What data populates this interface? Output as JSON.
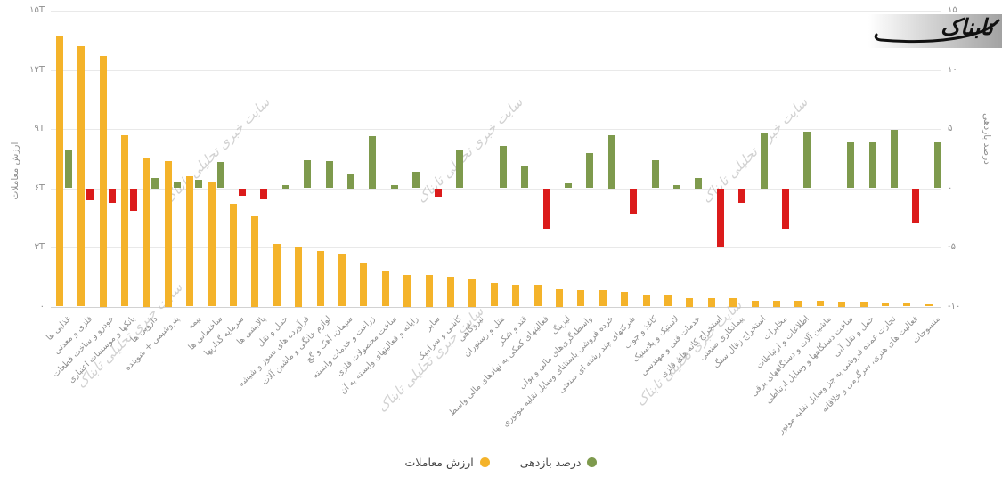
{
  "logo": {
    "text": "تابناک"
  },
  "watermark": {
    "text": "سایت خبری تحلیلی تابناک"
  },
  "legend": {
    "items": [
      {
        "label": "ارزش معاملات",
        "color": "#F4B32A"
      },
      {
        "label": "درصد بازدهی",
        "color": "#7E9A4D"
      }
    ]
  },
  "colors": {
    "value_bar": "#F4B32A",
    "return_positive": "#7E9A4D",
    "return_negative": "#DB1B1B"
  },
  "chart_data": {
    "type": "bar",
    "title": "",
    "legend_position": "bottom",
    "grid": true,
    "left_axis": {
      "title": "ارزش معاملات",
      "range": [
        0,
        15
      ],
      "ticks_top_to_bottom": [
        "۱۵T",
        "۱۲T",
        "۹T",
        "۶T",
        "۳T",
        "۰"
      ]
    },
    "right_axis": {
      "title": "درصد بازدهی",
      "range": [
        -10,
        15
      ],
      "ticks_top_to_bottom": [
        "۱۵",
        "۱۰",
        "۵",
        "۰",
        "-۵",
        "-۱۰"
      ]
    },
    "categories": [
      "غذایی ها",
      "فلزی و معدنی",
      "خودرو و ساخت قطعات",
      "بانکها و موسسات اعتباری",
      "دارویی ها",
      "پتروشیمی + شوینده",
      "بیمه",
      "ساختمانی ها",
      "سرمایه گذاریها",
      "پالایشی ها",
      "حمل و نقل",
      "فرآورده های نسوز و شیشه",
      "لوازم خانگی و ماشین آلات",
      "سیمان، آهک و گچ",
      "زراعت و خدمات وابسته",
      "ساخت محصولات فلزی",
      "رایانه و فعالیتهای وابسته به آن",
      "سایر",
      "کاشی و سرامیک",
      "نیروگاهی",
      "هتل و رستوران",
      "قند و شکر",
      "فعالیتهای کمکی به نهادهای مالی واسط",
      "لیزینگ",
      "واسطه‌گری‌های مالی و پولی",
      "خرده فروشی باستثنای وسایل نقلیه موتوری",
      "شرکتهای چند رشته ای صنعتی",
      "کاغذ و چوب",
      "لاستیک و پلاستیک",
      "خدمات فنی و مهندسی",
      "استخراج کانه های فلزی",
      "پیمانکاری صنعتی",
      "استخراج زغال سنگ",
      "مخابرات",
      "اطلاعات و ارتباطات",
      "ماشین آلات و دستگاههای برقی",
      "ساخت دستگاهها و وسایل ارتباطی",
      "حمل و نقل آبی",
      "تجارت عمده فروشی به جز وسایل نقلیه موتور",
      "فعالیت های هنری، سرگرمی و خلاقانه",
      "منسوجات"
    ],
    "series": [
      {
        "name": "ارزش معاملات",
        "axis": "left",
        "values": [
          13.7,
          13.2,
          12.7,
          8.7,
          7.5,
          7.4,
          6.6,
          6.3,
          5.2,
          4.6,
          3.2,
          3.0,
          2.8,
          2.7,
          2.2,
          1.8,
          1.6,
          1.6,
          1.5,
          1.4,
          1.2,
          1.1,
          1.1,
          0.9,
          0.85,
          0.85,
          0.75,
          0.6,
          0.6,
          0.45,
          0.45,
          0.45,
          0.3,
          0.3,
          0.3,
          0.28,
          0.25,
          0.25,
          0.22,
          0.15,
          0.1
        ]
      },
      {
        "name": "درصد بازدهی",
        "axis": "right",
        "values": [
          3.3,
          -1.0,
          -1.2,
          -1.9,
          0.9,
          0.5,
          0.7,
          2.2,
          -0.6,
          -0.9,
          0.3,
          2.4,
          2.3,
          1.2,
          4.4,
          0.3,
          1.4,
          -0.7,
          3.3,
          0,
          3.6,
          1.9,
          -3.4,
          0.4,
          3.0,
          4.5,
          -2.2,
          2.4,
          0.3,
          0.9,
          -5.0,
          -1.2,
          4.7,
          -3.4,
          4.8,
          0,
          3.9,
          3.9,
          4.9,
          -3.0,
          3.9
        ]
      }
    ]
  }
}
